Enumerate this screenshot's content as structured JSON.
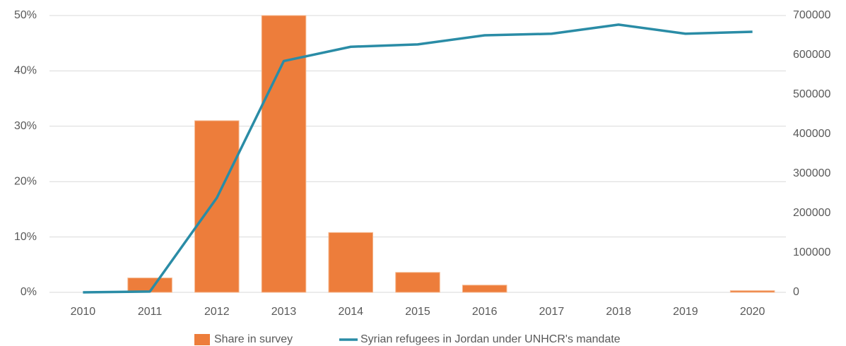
{
  "chart_data": {
    "type": "bar_line",
    "categories": [
      "2010",
      "2011",
      "2012",
      "2013",
      "2014",
      "2015",
      "2016",
      "2017",
      "2018",
      "2019",
      "2020"
    ],
    "series": [
      {
        "name": "Share in survey",
        "type": "bar",
        "color": "#ed7d3b",
        "values": [
          0,
          2.6,
          31,
          50,
          10.8,
          3.6,
          1.3,
          0,
          0,
          0,
          0.3
        ]
      },
      {
        "name": "Syrian refugees in Jordan under UNHCR's mandate",
        "type": "line",
        "axis": "y2",
        "color": "#2a8ca6",
        "values": [
          0,
          2000,
          239000,
          585000,
          621000,
          627000,
          650000,
          654000,
          677000,
          654000,
          659000
        ]
      }
    ],
    "ylim": [
      0,
      50
    ],
    "yticks": [
      {
        "value": 0,
        "label": "0%"
      },
      {
        "value": 10,
        "label": "10%"
      },
      {
        "value": 20,
        "label": "20%"
      },
      {
        "value": 30,
        "label": "30%"
      },
      {
        "value": 40,
        "label": "40%"
      },
      {
        "value": 50,
        "label": "50%"
      }
    ],
    "y2lim": [
      0,
      700000
    ],
    "y2ticks": [
      0,
      100000,
      200000,
      300000,
      400000,
      500000,
      600000,
      700000
    ],
    "grid": true,
    "legend": "bottom"
  }
}
